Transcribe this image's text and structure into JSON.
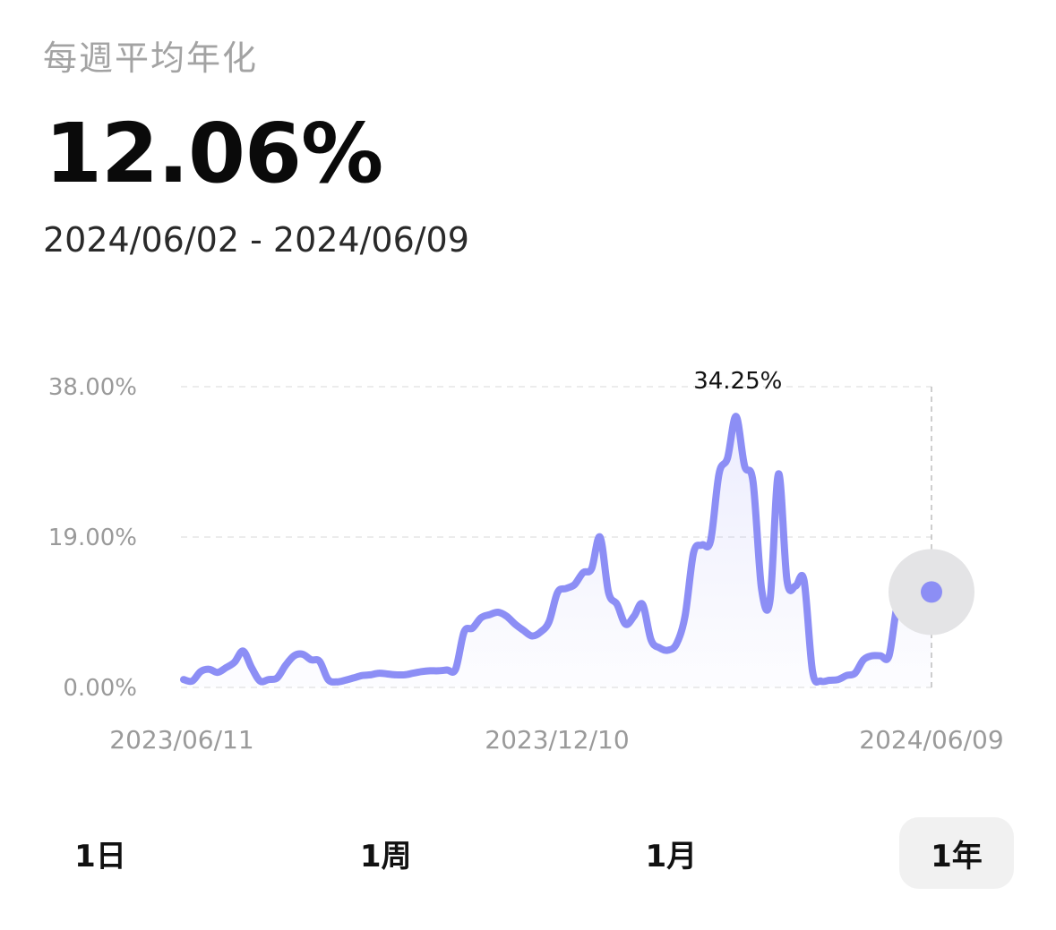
{
  "header": {
    "subtitle": "每週平均年化",
    "value": "12.06%",
    "date_range": "2024/06/02 - 2024/06/09"
  },
  "chart_data": {
    "type": "area",
    "x_start": "2023/06/11",
    "x_end": "2024/06/09",
    "x_tick_labels": [
      "2023/06/11",
      "2023/12/10",
      "2024/06/09"
    ],
    "y_tick_labels": [
      "38.00%",
      "19.00%",
      "0.00%"
    ],
    "ylim": [
      0,
      38
    ],
    "peak_label": "34.25%",
    "values": [
      1.0,
      0.8,
      2.0,
      2.3,
      1.9,
      2.5,
      3.2,
      4.6,
      2.5,
      0.8,
      1.0,
      1.2,
      2.8,
      4.0,
      4.2,
      3.5,
      3.3,
      1.0,
      0.7,
      0.9,
      1.2,
      1.5,
      1.6,
      1.8,
      1.7,
      1.6,
      1.6,
      1.8,
      2.0,
      2.1,
      2.1,
      2.2,
      2.3,
      7.0,
      7.5,
      8.8,
      9.2,
      9.5,
      9.0,
      8.0,
      7.2,
      6.5,
      7.0,
      8.3,
      12.0,
      12.5,
      13.0,
      14.5,
      15.0,
      19.0,
      12.0,
      10.5,
      8.0,
      9.0,
      10.5,
      6.0,
      5.0,
      4.7,
      5.5,
      9.0,
      17.0,
      18.0,
      18.5,
      27.0,
      29.0,
      34.25,
      28.0,
      26.0,
      12.5,
      11.0,
      27.0,
      13.5,
      12.8,
      13.5,
      2.0,
      0.8,
      0.9,
      1.0,
      1.5,
      1.8,
      3.5,
      4.0,
      4.0,
      4.0,
      10.5,
      10.8,
      11.0,
      11.5,
      12.06
    ],
    "series_color": "#8c8ef5",
    "grid": "dashed-horizontal",
    "highlight": "last-point"
  },
  "range_tabs": [
    {
      "label": "1日",
      "active": false
    },
    {
      "label": "1周",
      "active": false
    },
    {
      "label": "1月",
      "active": false
    },
    {
      "label": "1年",
      "active": true
    }
  ]
}
